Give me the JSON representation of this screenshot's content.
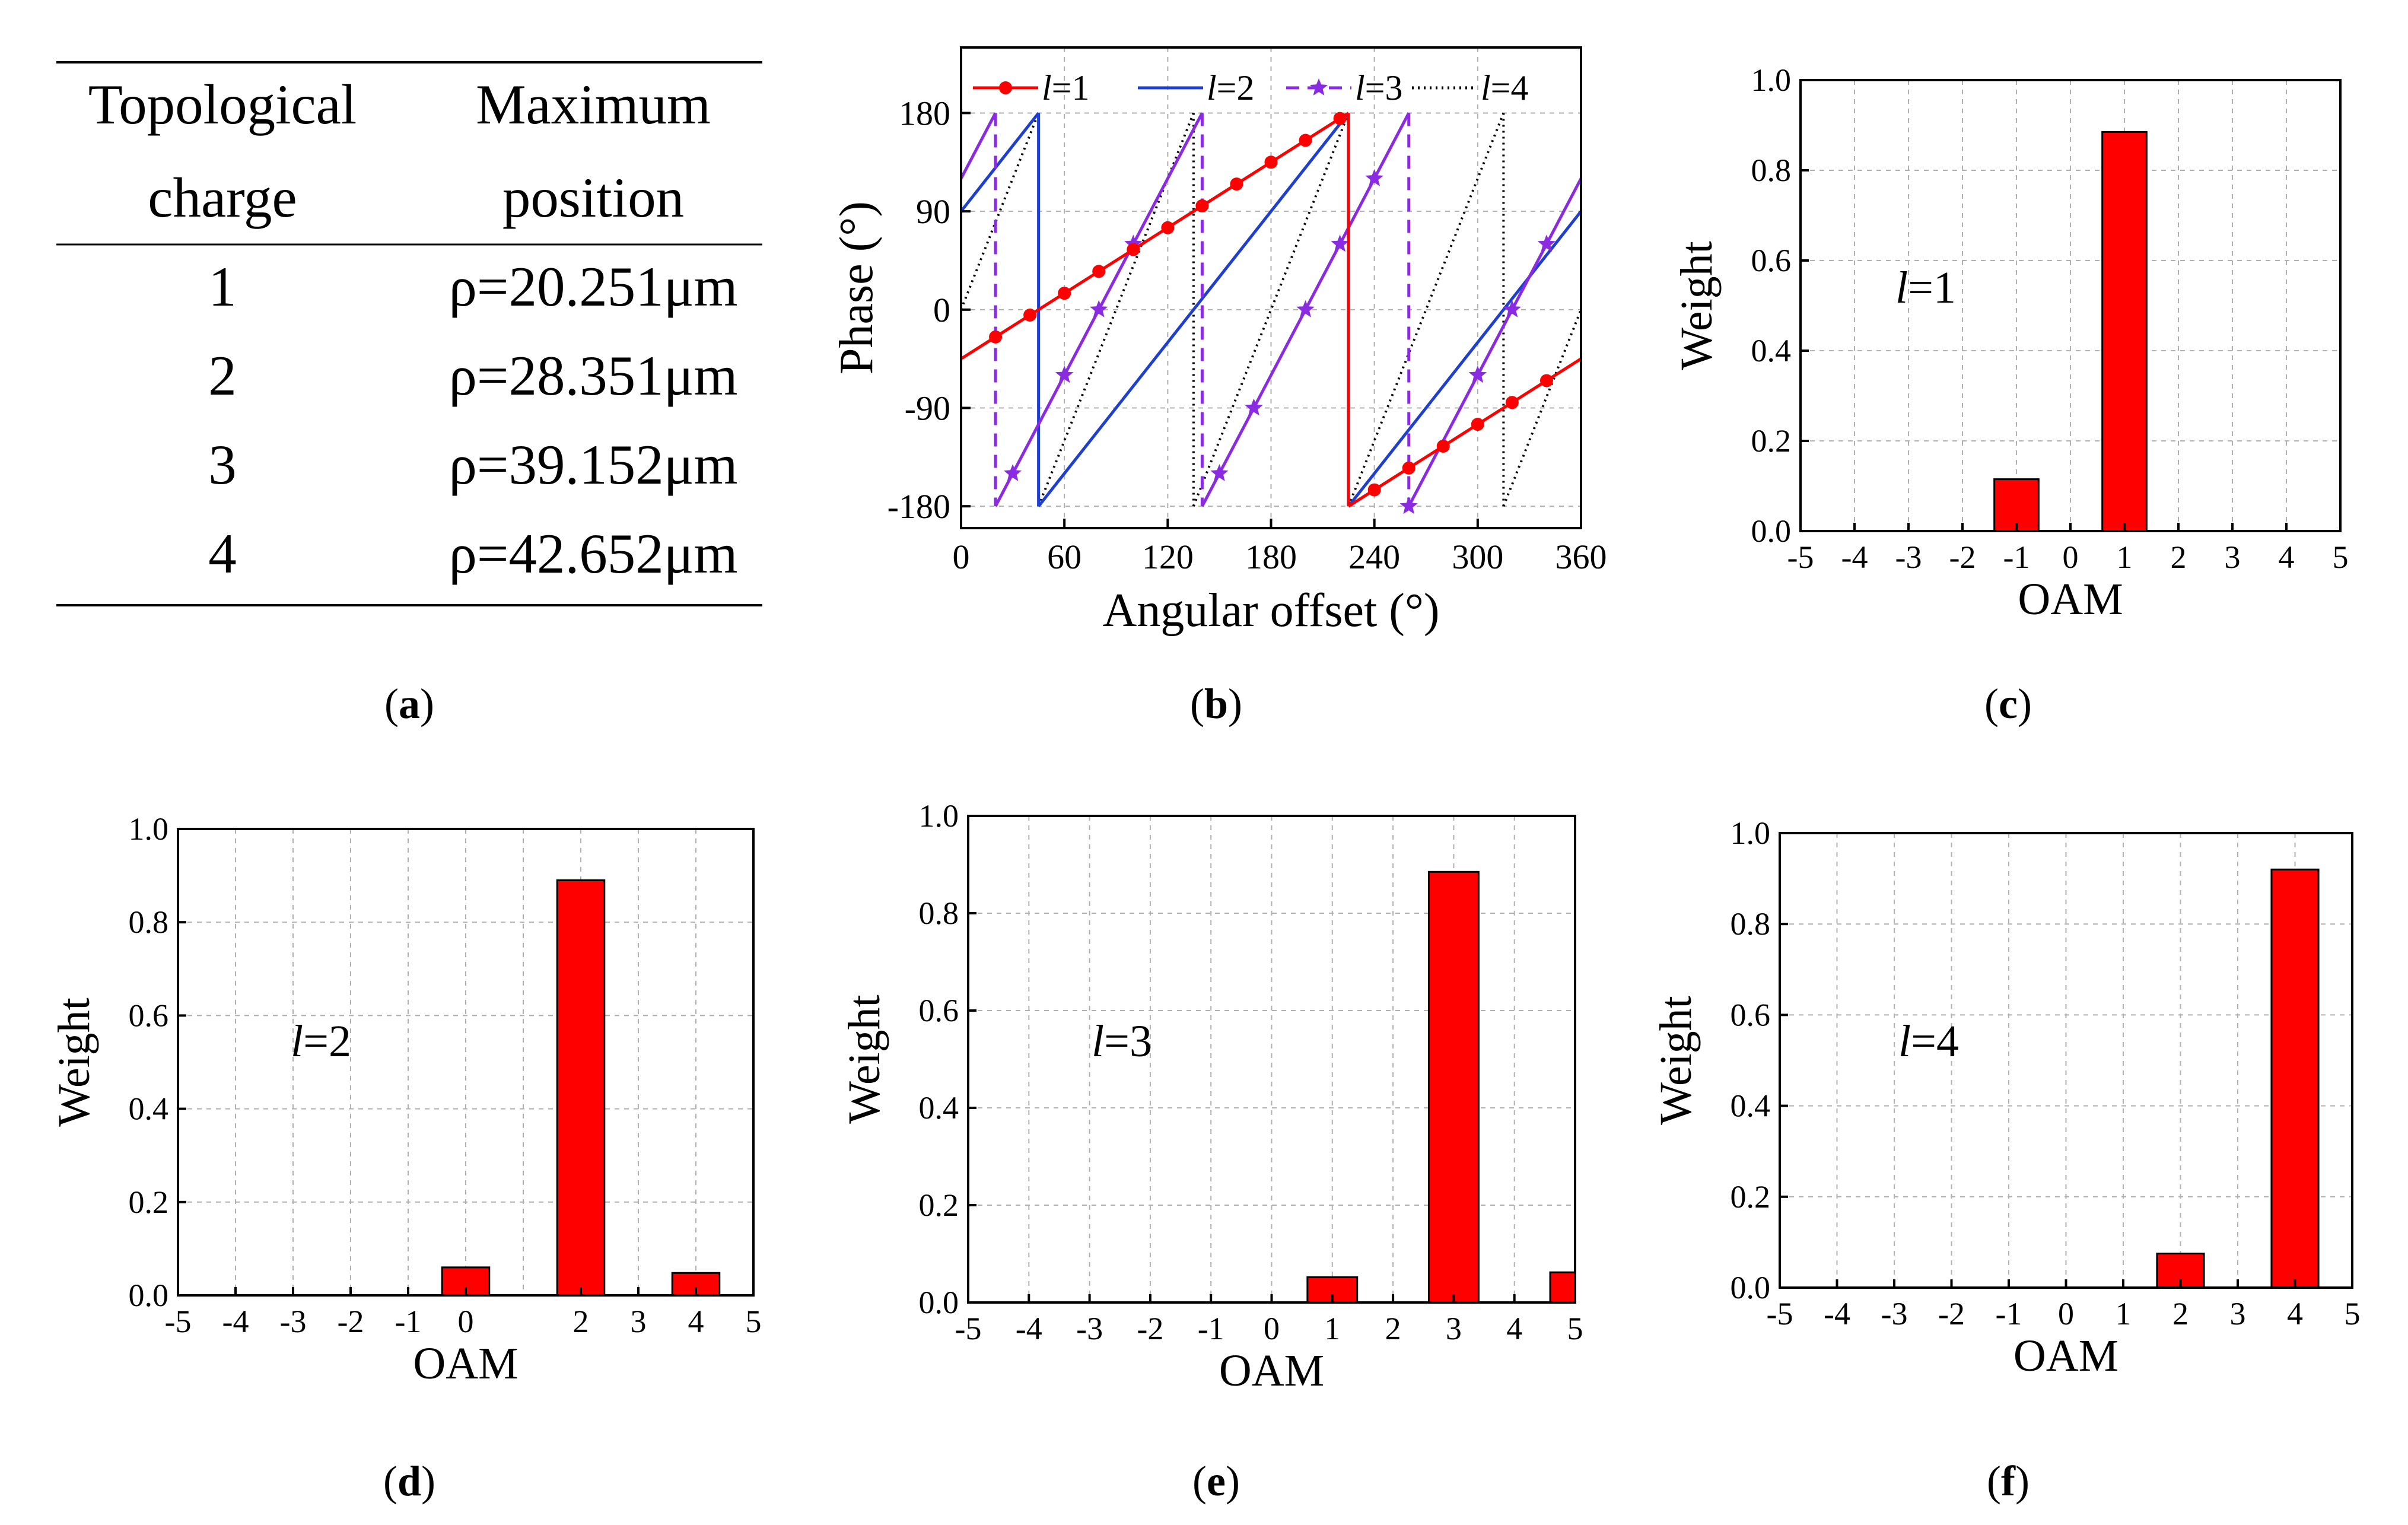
{
  "table": {
    "headers": [
      [
        "Topological",
        "charge"
      ],
      [
        "Maximum",
        "position"
      ]
    ],
    "rows": [
      [
        "1",
        "ρ=20.251μm"
      ],
      [
        "2",
        "ρ=28.351μm"
      ],
      [
        "3",
        "ρ=39.152μm"
      ],
      [
        "4",
        "ρ=42.652μm"
      ]
    ]
  },
  "panel_labels": [
    "a",
    "b",
    "c",
    "d",
    "e",
    "f"
  ],
  "colors": {
    "red": "#ff0000",
    "blue": "#1f3fd1",
    "purple": "#8a2be2",
    "black": "#000000",
    "grid": "#b0b0b0"
  },
  "chart_data": [
    {
      "id": "b",
      "type": "line",
      "xlabel": "Angular offset (°)",
      "ylabel": "Phase (°)",
      "xlim": [
        0,
        360
      ],
      "ylim": [
        -200,
        240
      ],
      "xticks": [
        0,
        60,
        120,
        180,
        240,
        300,
        360
      ],
      "yticks": [
        -180,
        -90,
        0,
        90,
        180
      ],
      "legend_position": "top",
      "series": [
        {
          "name": "l=1",
          "name_italic": "l",
          "name_rest": "=1",
          "color": "#ff0000",
          "style": "solid",
          "marker": "circle",
          "marker_x": [
            20,
            40,
            60,
            80,
            100,
            120,
            140,
            160,
            180,
            200,
            220,
            240,
            260,
            280,
            300,
            320,
            340
          ],
          "x": [
            0,
            225,
            225,
            360
          ],
          "y": [
            -45,
            180,
            -180,
            -45
          ]
        },
        {
          "name": "l=2",
          "name_italic": "l",
          "name_rest": "=2",
          "color": "#1f3fd1",
          "style": "solid",
          "marker": "none",
          "x": [
            0,
            45,
            45,
            225,
            225,
            360
          ],
          "y": [
            90,
            180,
            -180,
            180,
            -180,
            90
          ]
        },
        {
          "name": "l=3",
          "name_italic": "l",
          "name_rest": "=3",
          "color": "#8a2be2",
          "style": "solid-dash-jumps",
          "marker": "star",
          "marker_x": [
            30,
            60,
            80,
            100,
            150,
            170,
            200,
            220,
            240,
            260,
            300,
            320,
            340
          ],
          "breaks": [
            20,
            140,
            260
          ],
          "slope": 3,
          "offset": 120
        },
        {
          "name": "l=4",
          "name_italic": "l",
          "name_rest": "=4",
          "color": "#000000",
          "style": "dotted",
          "marker": "none",
          "breaks": [
            45,
            135,
            225,
            315
          ],
          "slope": 4,
          "offset": 0
        }
      ]
    },
    {
      "id": "c",
      "type": "bar",
      "annotation_italic": "l",
      "annotation_rest": "=1",
      "xlabel": "OAM",
      "ylabel": "Weight",
      "xlim": [
        -5,
        5
      ],
      "ylim": [
        0,
        1.0
      ],
      "xticks": [
        -5,
        -4,
        -3,
        -2,
        -1,
        0,
        1,
        2,
        3,
        4,
        5
      ],
      "yticks": [
        0.0,
        0.2,
        0.4,
        0.6,
        0.8,
        1.0
      ],
      "ytick_labels": [
        "0.0",
        "0.2",
        "0.4",
        "0.6",
        "0.8",
        "1.0"
      ],
      "x": [
        -1,
        1
      ],
      "values": [
        0.115,
        0.885
      ]
    },
    {
      "id": "d",
      "type": "bar",
      "annotation_italic": "l",
      "annotation_rest": "=2",
      "xlabel": "OAM",
      "ylabel": "Weight",
      "xlim": [
        -5,
        5
      ],
      "ylim": [
        0,
        1.0
      ],
      "xticks": [
        -5,
        -4,
        -3,
        -2,
        -1,
        0,
        2,
        3,
        4,
        5
      ],
      "yticks": [
        0.0,
        0.2,
        0.4,
        0.6,
        0.8,
        1.0
      ],
      "ytick_labels": [
        "0.0",
        "0.2",
        "0.4",
        "0.6",
        "0.8",
        "1.0"
      ],
      "x": [
        0,
        2,
        4
      ],
      "values": [
        0.06,
        0.89,
        0.048
      ]
    },
    {
      "id": "e",
      "type": "bar",
      "annotation_italic": "l",
      "annotation_rest": "=3",
      "xlabel": "OAM",
      "ylabel": "Weight",
      "xlim": [
        -5,
        5
      ],
      "ylim": [
        0,
        1.0
      ],
      "xticks": [
        -5,
        -4,
        -3,
        -2,
        -1,
        0,
        1,
        2,
        3,
        4,
        5
      ],
      "yticks": [
        0.0,
        0.2,
        0.4,
        0.6,
        0.8,
        1.0
      ],
      "ytick_labels": [
        "0.0",
        "0.2",
        "0.4",
        "0.6",
        "0.8",
        "1.0"
      ],
      "x": [
        1,
        3,
        5
      ],
      "values": [
        0.052,
        0.885,
        0.062
      ]
    },
    {
      "id": "f",
      "type": "bar",
      "annotation_italic": "l",
      "annotation_rest": "=4",
      "xlabel": "OAM",
      "ylabel": "Weight",
      "xlim": [
        -5,
        5
      ],
      "ylim": [
        0,
        1.0
      ],
      "xticks": [
        -5,
        -4,
        -3,
        -2,
        -1,
        0,
        1,
        2,
        3,
        4,
        5
      ],
      "yticks": [
        0.0,
        0.2,
        0.4,
        0.6,
        0.8,
        1.0
      ],
      "ytick_labels": [
        "0.0",
        "0.2",
        "0.4",
        "0.6",
        "0.8",
        "1.0"
      ],
      "x": [
        2,
        4
      ],
      "values": [
        0.075,
        0.92
      ]
    }
  ]
}
